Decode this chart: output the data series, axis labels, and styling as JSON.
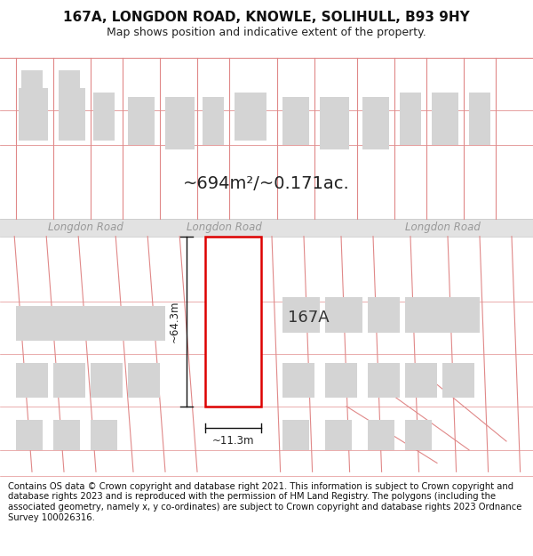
{
  "title_line1": "167A, LONGDON ROAD, KNOWLE, SOLIHULL, B93 9HY",
  "title_line2": "Map shows position and indicative extent of the property.",
  "area_label": "~694m²/~0.171ac.",
  "property_label": "167A",
  "width_label": "~11.3m",
  "height_label": "~64.3m",
  "road_label": "Longdon Road",
  "footer_text": "Contains OS data © Crown copyright and database right 2021. This information is subject to Crown copyright and database rights 2023 and is reproduced with the permission of HM Land Registry. The polygons (including the associated geometry, namely x, y co-ordinates) are subject to Crown copyright and database rights 2023 Ordnance Survey 100026316.",
  "bg_color": "#ffffff",
  "map_bg": "#ffffff",
  "neighbor_fill": "#d4d4d4",
  "neighbor_outline": "#e08888",
  "plot_outline_color": "#dd0000",
  "plot_fill_color": "#ffffff",
  "dim_line_color": "#111111",
  "road_text_color": "#999999",
  "title_fontsize": 11,
  "subtitle_fontsize": 9,
  "footer_fontsize": 7.2,
  "area_fontsize": 14,
  "road_fontsize": 8.5,
  "prop_label_fontsize": 13,
  "dim_fontsize": 8.5
}
